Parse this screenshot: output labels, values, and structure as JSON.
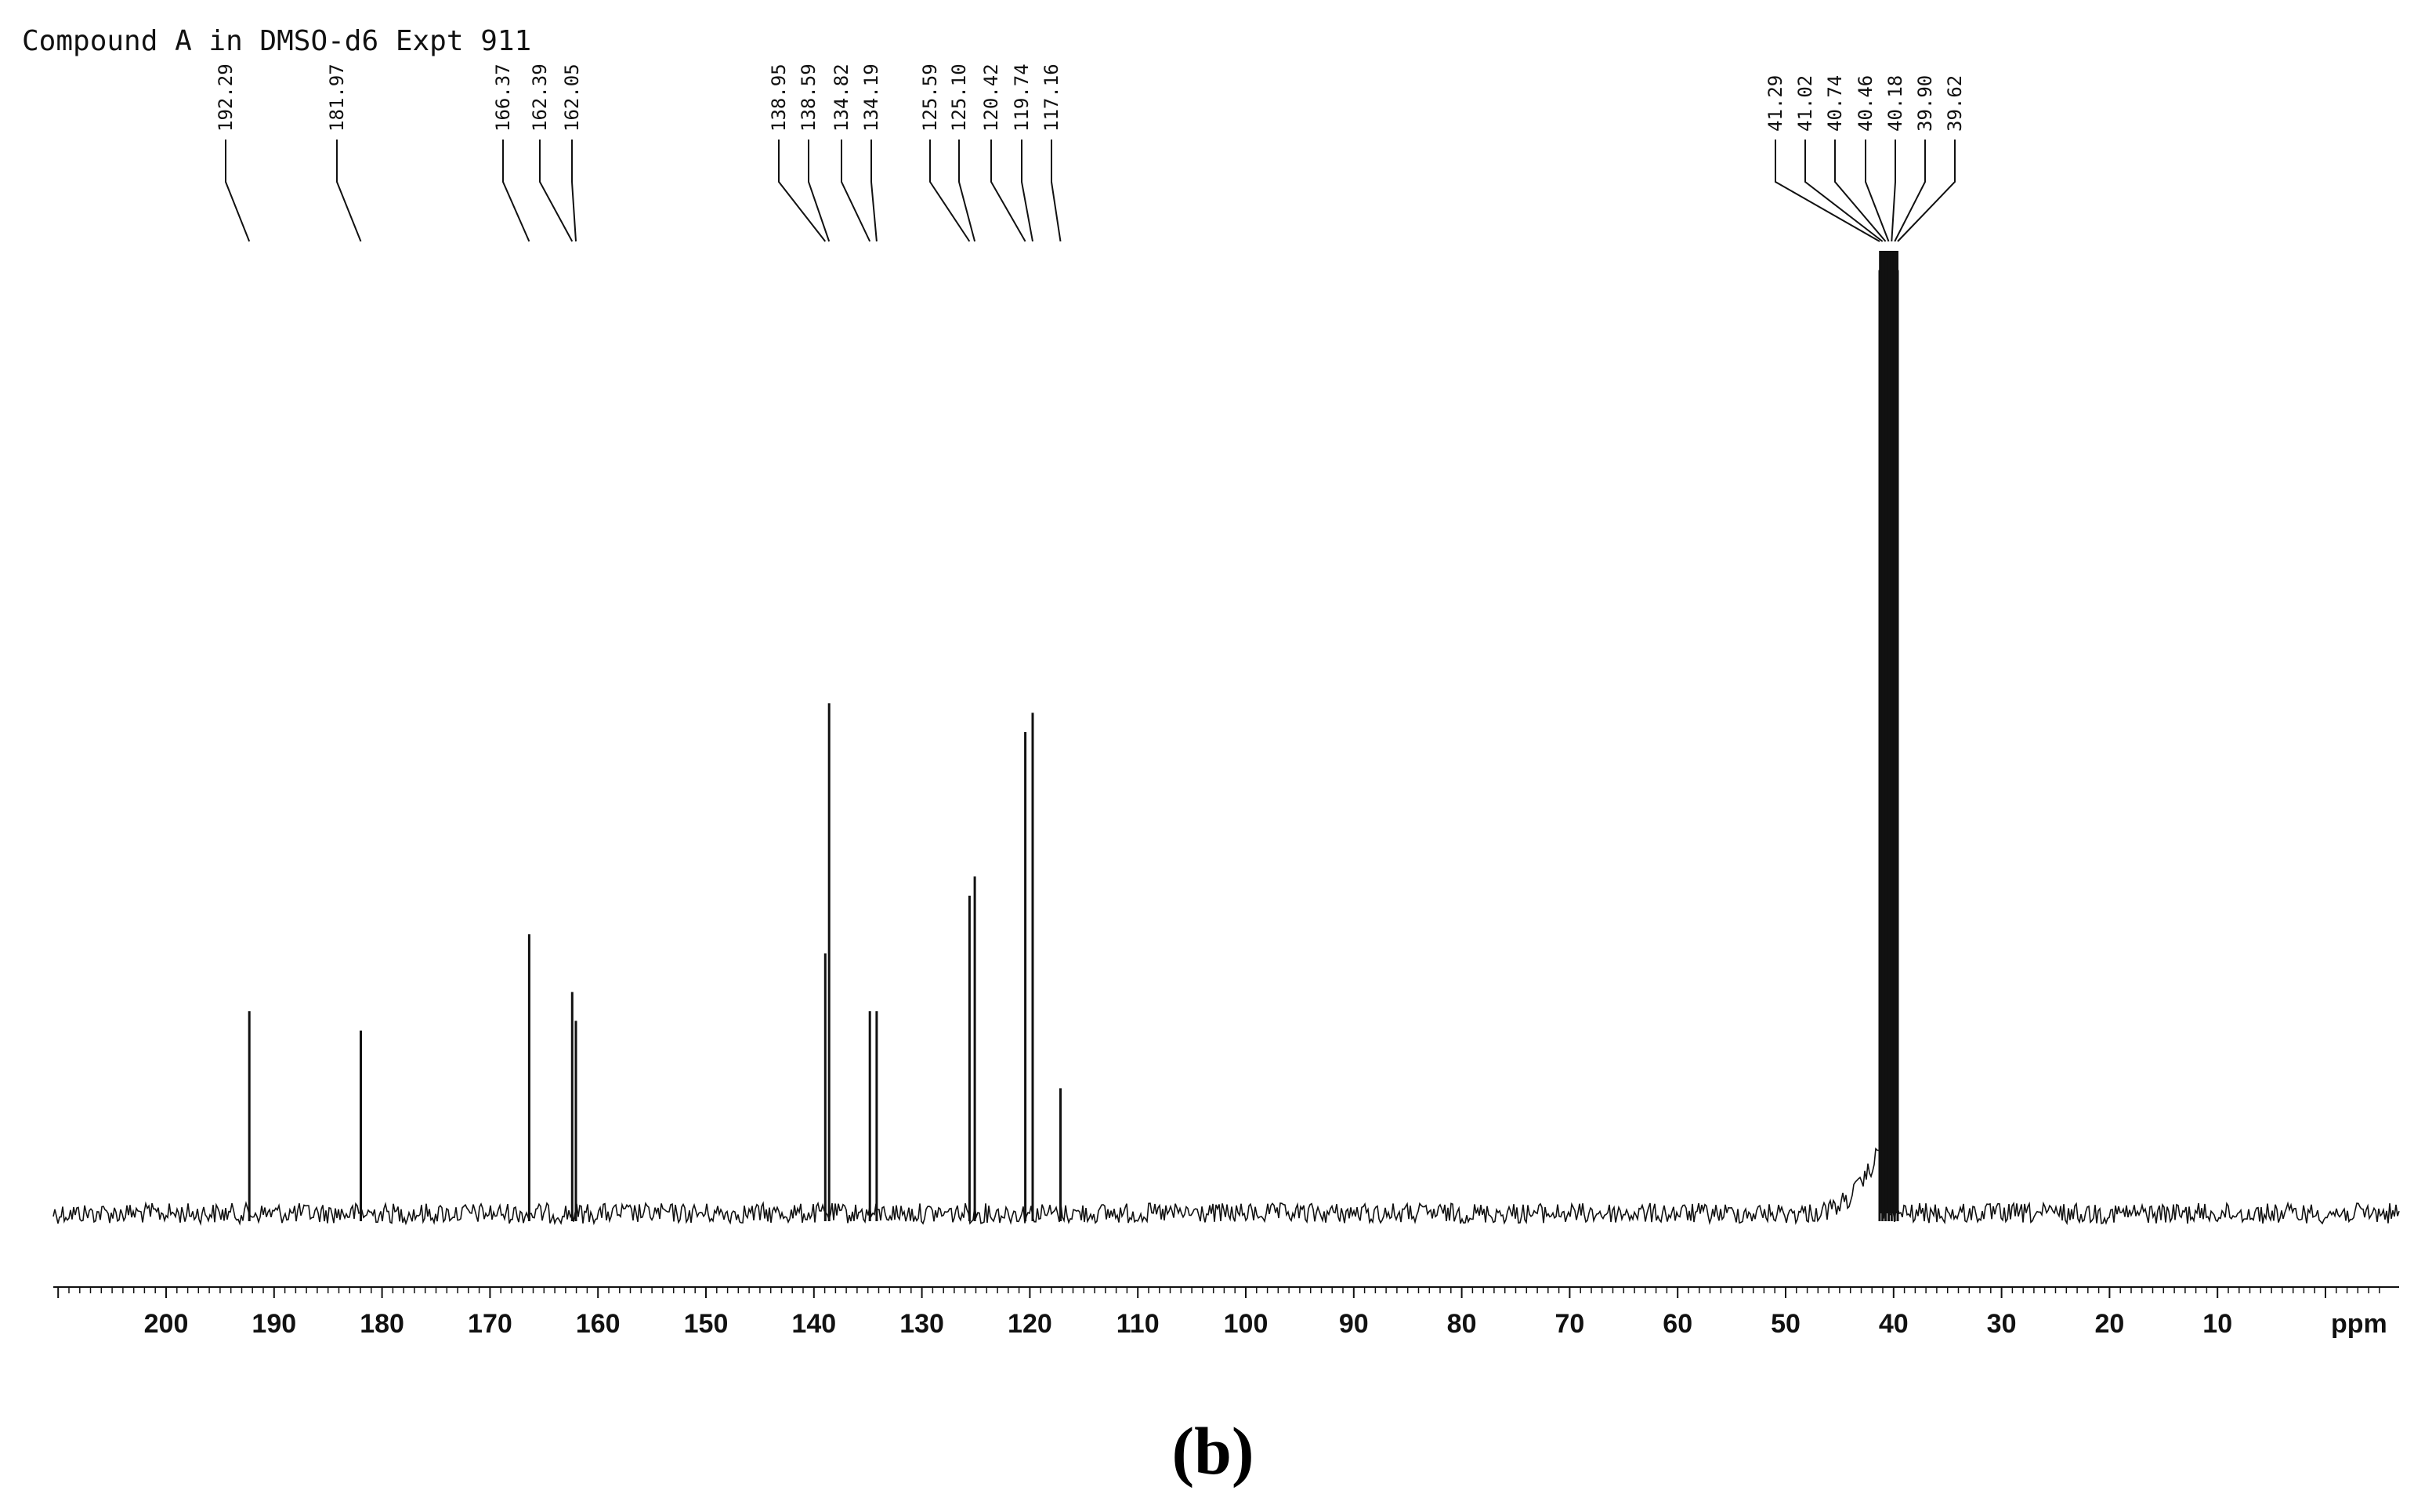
{
  "title": "Compound A in DMSO-d6 Expt 911",
  "panel_label": "(b)",
  "colors": {
    "ink": "#111111",
    "background": "#ffffff"
  },
  "chart_data": {
    "type": "line",
    "xlabel": "ppm",
    "xlim": [
      210,
      0
    ],
    "x_reversed": true,
    "grid": false,
    "legend": "none",
    "x_ticks": [
      {
        "value": 200,
        "label": "200"
      },
      {
        "value": 190,
        "label": "190"
      },
      {
        "value": 180,
        "label": "180"
      },
      {
        "value": 170,
        "label": "170"
      },
      {
        "value": 160,
        "label": "160"
      },
      {
        "value": 150,
        "label": "150"
      },
      {
        "value": 140,
        "label": "140"
      },
      {
        "value": 130,
        "label": "130"
      },
      {
        "value": 120,
        "label": "120"
      },
      {
        "value": 110,
        "label": "110"
      },
      {
        "value": 100,
        "label": "100"
      },
      {
        "value": 90,
        "label": "90"
      },
      {
        "value": 80,
        "label": "80"
      },
      {
        "value": 70,
        "label": "70"
      },
      {
        "value": 60,
        "label": "60"
      },
      {
        "value": 50,
        "label": "50"
      },
      {
        "value": 40,
        "label": "40"
      },
      {
        "value": 30,
        "label": "30"
      },
      {
        "value": 20,
        "label": "20"
      },
      {
        "value": 10,
        "label": "10"
      }
    ],
    "peaks": [
      {
        "shift": 192.29,
        "label": "192.29",
        "intensity": 0.21
      },
      {
        "shift": 181.97,
        "label": "181.97",
        "intensity": 0.19
      },
      {
        "shift": 166.37,
        "label": "166.37",
        "intensity": 0.29
      },
      {
        "shift": 162.39,
        "label": "162.39",
        "intensity": 0.23
      },
      {
        "shift": 162.05,
        "label": "162.05",
        "intensity": 0.2
      },
      {
        "shift": 138.95,
        "label": "138.95",
        "intensity": 0.27
      },
      {
        "shift": 138.59,
        "label": "138.59",
        "intensity": 0.53
      },
      {
        "shift": 134.82,
        "label": "134.82",
        "intensity": 0.21
      },
      {
        "shift": 134.19,
        "label": "134.19",
        "intensity": 0.21
      },
      {
        "shift": 125.59,
        "label": "125.59",
        "intensity": 0.33
      },
      {
        "shift": 125.1,
        "label": "125.10",
        "intensity": 0.35
      },
      {
        "shift": 120.42,
        "label": "120.42",
        "intensity": 0.5
      },
      {
        "shift": 119.74,
        "label": "119.74",
        "intensity": 0.52
      },
      {
        "shift": 117.16,
        "label": "117.16",
        "intensity": 0.13
      },
      {
        "shift": 41.29,
        "label": "41.29",
        "intensity": 0.98
      },
      {
        "shift": 41.02,
        "label": "41.02",
        "intensity": 1.0
      },
      {
        "shift": 40.74,
        "label": "40.74",
        "intensity": 1.0
      },
      {
        "shift": 40.46,
        "label": "40.46",
        "intensity": 1.0
      },
      {
        "shift": 40.18,
        "label": "40.18",
        "intensity": 1.0
      },
      {
        "shift": 39.9,
        "label": "39.90",
        "intensity": 1.0
      },
      {
        "shift": 39.62,
        "label": "39.62",
        "intensity": 0.98
      }
    ]
  }
}
